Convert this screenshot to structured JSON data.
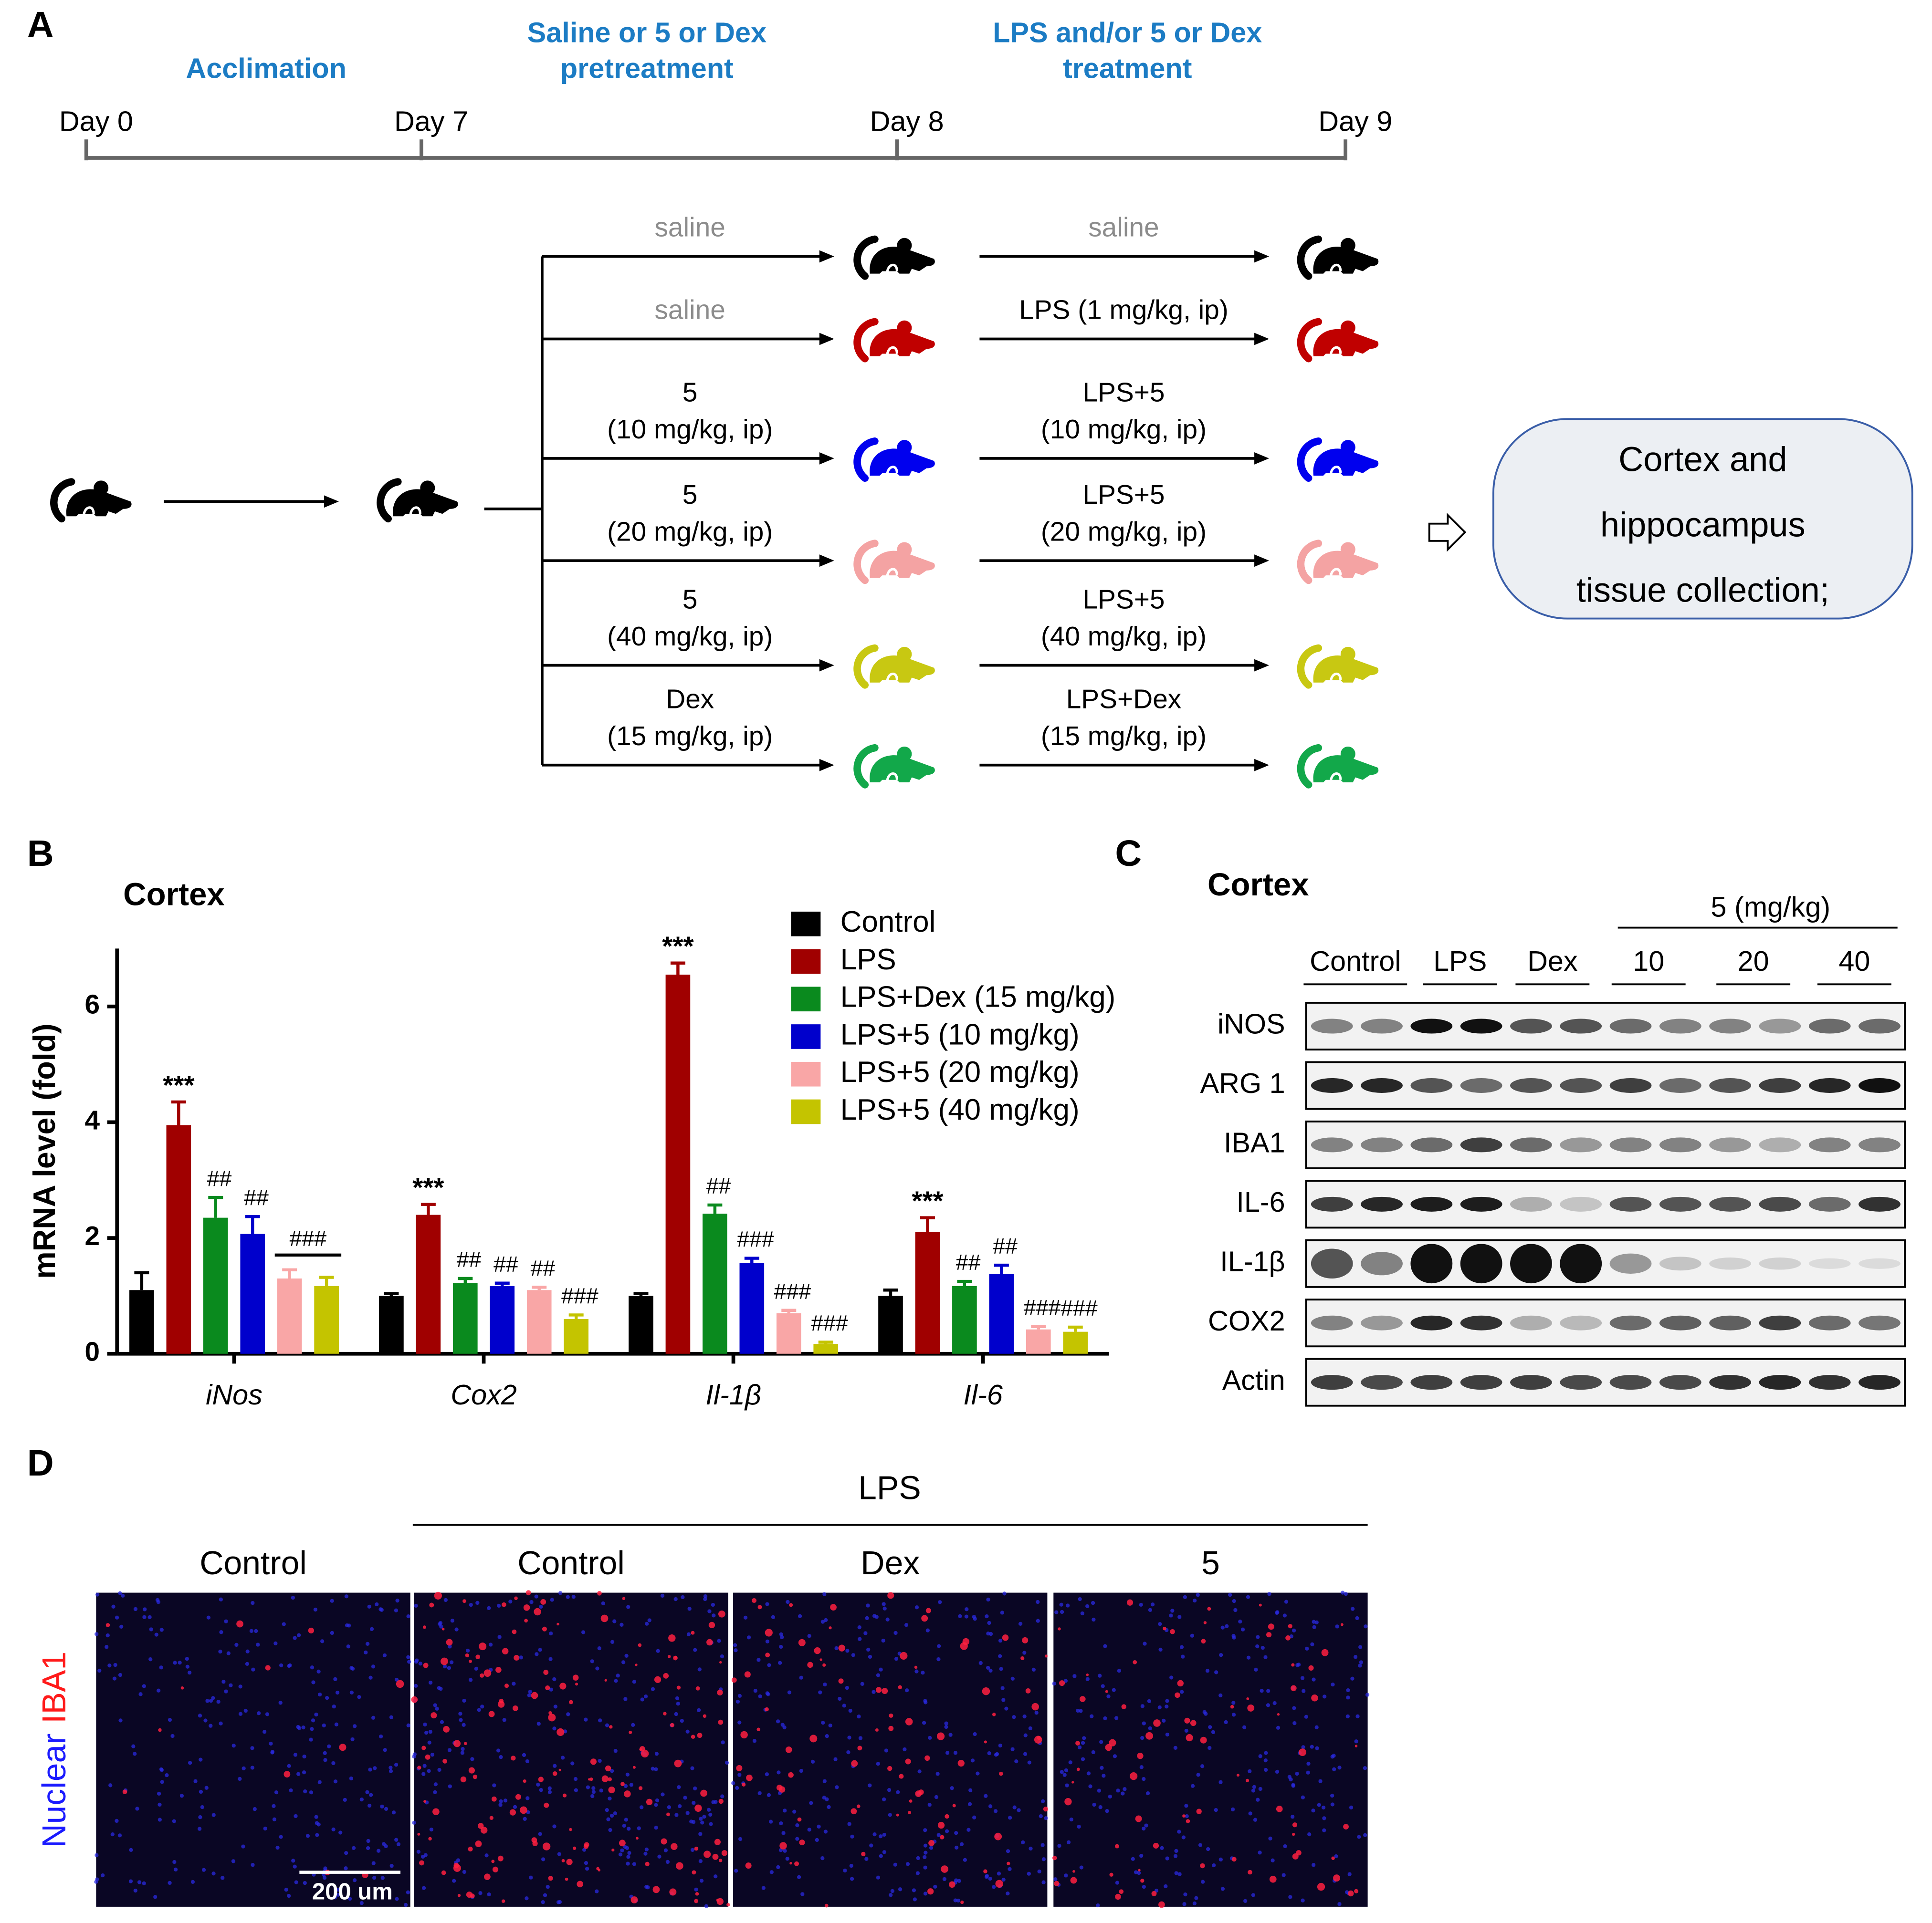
{
  "panel_labels": [
    "A",
    "B",
    "C",
    "D"
  ],
  "diagram": {
    "phases": [
      [
        "Acclimation"
      ],
      [
        "Saline or 5 or Dex",
        "pretreatment"
      ],
      [
        "LPS and/or 5 or Dex",
        "treatment"
      ]
    ],
    "days": [
      "Day 0",
      "Day 7",
      "Day 8",
      "Day 9"
    ],
    "groups": [
      {
        "color": "#000000",
        "pre": {
          "lines": [
            "saline"
          ],
          "color": "#8c8c8c"
        },
        "treat": {
          "lines": [
            "saline"
          ],
          "color": "#8c8c8c"
        }
      },
      {
        "color": "#c00000",
        "pre": {
          "lines": [
            "saline"
          ],
          "color": "#8c8c8c"
        },
        "treat": {
          "lines": [
            "LPS (1 mg/kg, ip)"
          ],
          "color": "#000000"
        }
      },
      {
        "color": "#0000ee",
        "pre": {
          "lines": [
            "5",
            "(10 mg/kg, ip)"
          ],
          "color": "#000000"
        },
        "treat": {
          "lines": [
            "LPS+5",
            "(10 mg/kg, ip)"
          ],
          "color": "#000000"
        }
      },
      {
        "color": "#f4a3a3",
        "pre": {
          "lines": [
            "5",
            "(20 mg/kg, ip)"
          ],
          "color": "#000000"
        },
        "treat": {
          "lines": [
            "LPS+5",
            "(20 mg/kg, ip)"
          ],
          "color": "#000000"
        }
      },
      {
        "color": "#c8c812",
        "pre": {
          "lines": [
            "5",
            "(40 mg/kg, ip)"
          ],
          "color": "#000000"
        },
        "treat": {
          "lines": [
            "LPS+5",
            "(40 mg/kg, ip)"
          ],
          "color": "#000000"
        }
      },
      {
        "color": "#12a84a",
        "pre": {
          "lines": [
            "Dex",
            "(15 mg/kg, ip)"
          ],
          "color": "#000000"
        },
        "treat": {
          "lines": [
            "LPS+Dex",
            "(15 mg/kg, ip)"
          ],
          "color": "#000000"
        }
      }
    ],
    "outcome": [
      "Cortex and",
      "hippocampus",
      "tissue collection;"
    ]
  },
  "chart_data": {
    "type": "bar",
    "title": "Cortex",
    "ylabel": "mRNA level (fold)",
    "categories": [
      "iNos",
      "Cox2",
      "Il-1β",
      "Il-6"
    ],
    "ylim": [
      0,
      7
    ],
    "yticks": [
      0,
      2,
      4,
      6
    ],
    "grid": false,
    "legend": "upper right",
    "series": [
      {
        "name": "Control",
        "color": "#000000",
        "values": [
          1.1,
          1.0,
          1.0,
          1.0
        ],
        "errors": [
          0.3,
          0.04,
          0.04,
          0.1
        ]
      },
      {
        "name": "LPS",
        "color": "#a00000",
        "values": [
          3.95,
          2.4,
          6.55,
          2.1
        ],
        "errors": [
          0.4,
          0.18,
          0.2,
          0.25
        ],
        "significance": [
          "***",
          "***",
          "***",
          "***"
        ]
      },
      {
        "name": "LPS+Dex (15 mg/kg)",
        "color": "#0a8a1e",
        "values": [
          2.35,
          1.22,
          2.42,
          1.17
        ],
        "errors": [
          0.35,
          0.08,
          0.15,
          0.08
        ],
        "significance": [
          "##",
          "##",
          "##",
          "##"
        ]
      },
      {
        "name": "LPS+5 (10 mg/kg)",
        "color": "#0000cc",
        "values": [
          2.07,
          1.17,
          1.57,
          1.38
        ],
        "errors": [
          0.3,
          0.05,
          0.08,
          0.15
        ],
        "significance": [
          "##",
          "##",
          "###",
          "##"
        ]
      },
      {
        "name": "LPS+5 (20 mg/kg)",
        "color": "#f9a6a6",
        "values": [
          1.3,
          1.1,
          0.7,
          0.42
        ],
        "errors": [
          0.15,
          0.05,
          0.05,
          0.05
        ],
        "significance": [
          null,
          "##",
          "###",
          "###"
        ]
      },
      {
        "name": "LPS+5 (40 mg/kg)",
        "color": "#c4c400",
        "values": [
          1.17,
          0.6,
          0.17,
          0.38
        ],
        "errors": [
          0.15,
          0.07,
          0.03,
          0.08
        ],
        "significance": [
          null,
          "###",
          "###",
          "###"
        ]
      }
    ],
    "brackets": [
      {
        "category": "iNos",
        "series": [
          "LPS+5 (20 mg/kg)",
          "LPS+5 (40 mg/kg)"
        ],
        "label": "###"
      }
    ]
  },
  "blot": {
    "title": "Cortex",
    "dose_header": "5 (mg/kg)",
    "columns": [
      "Control",
      "LPS",
      "Dex",
      "10",
      "20",
      "40"
    ],
    "rows": [
      "iNOS",
      "ARG 1",
      "IBA1",
      "IL-6",
      "IL-1β",
      "COX2",
      "Actin"
    ]
  },
  "imaging": {
    "header": "LPS",
    "columns": [
      "Control",
      "Control",
      "Dex",
      "5"
    ],
    "stain_labels": [
      {
        "text": "Nuclear",
        "color": "#1a1aff"
      },
      {
        "text": "IBA1",
        "color": "#ff1a1a"
      }
    ],
    "scale_bar": "200 um"
  }
}
